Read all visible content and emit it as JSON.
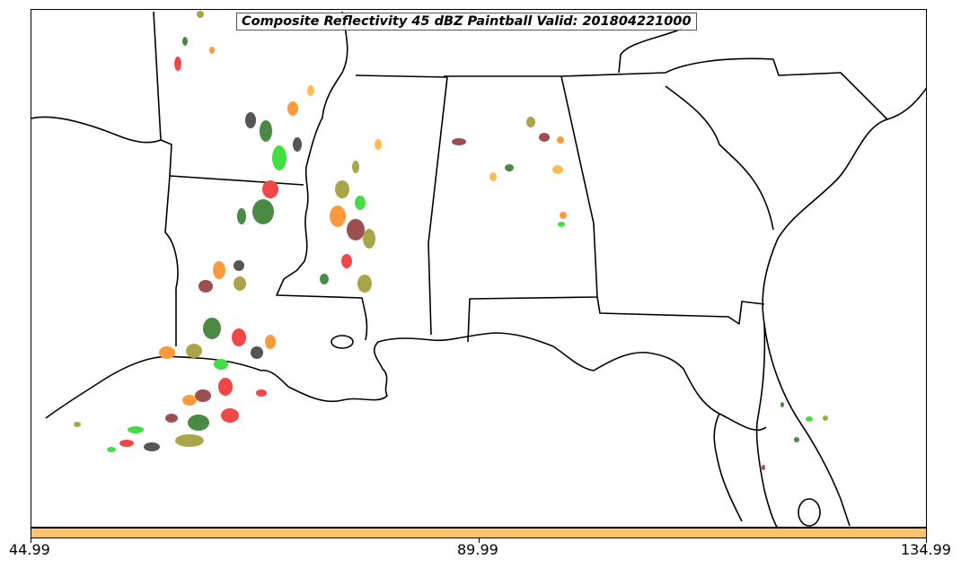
{
  "title": "Composite Reflectivity 45 dBZ Paintball Valid: 201804221000",
  "colorbar": {
    "color": "#ffc46a",
    "ticks": [
      "44.99",
      "89.99",
      "134.99"
    ]
  },
  "palette": {
    "orange": "#ff9a3c",
    "light_orange": "#ffbb55",
    "red": "#f04848",
    "brown": "#9c4f4f",
    "dark_green": "#4a8a44",
    "olive": "#a9a64a",
    "green": "#44dd44",
    "dark_gray": "#555555"
  }
}
